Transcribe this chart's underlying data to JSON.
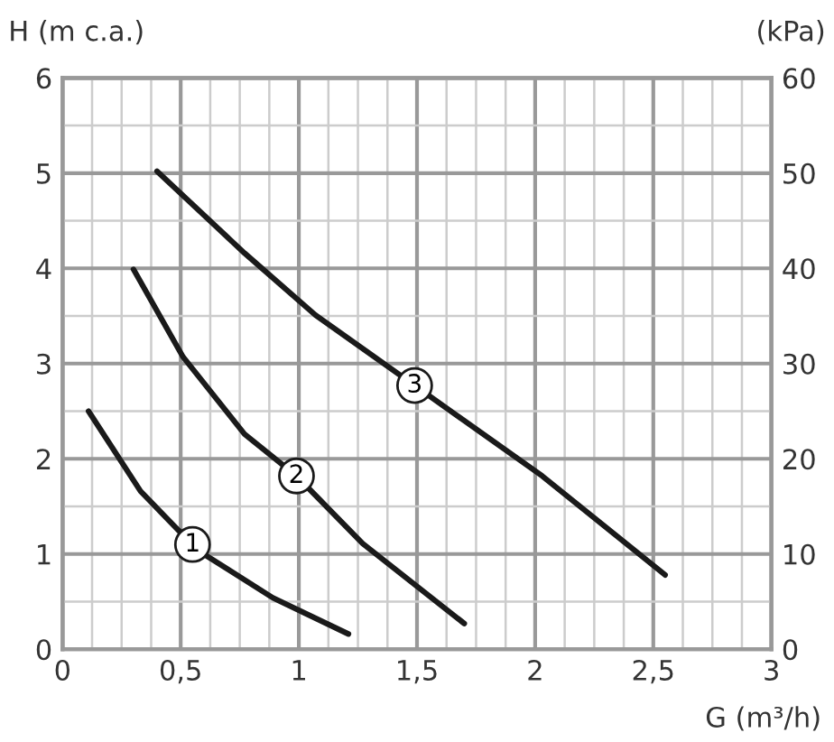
{
  "chart_data": {
    "type": "line",
    "xlabel": "G (m³/h)",
    "ylabel": "H (m c.a.)",
    "y2label": "(kPa)",
    "series": [
      {
        "color": "#1a1a1a",
        "x": [
          0.11,
          0.33,
          0.49,
          0.61,
          0.89,
          1.21
        ],
        "values": [
          2.5,
          1.66,
          1.25,
          0.98,
          0.54,
          0.16
        ]
      },
      {
        "color": "#1a1a1a",
        "x": [
          0.3,
          0.51,
          0.77,
          0.99,
          1.27,
          1.7
        ],
        "values": [
          3.99,
          3.07,
          2.26,
          1.82,
          1.11,
          0.27
        ]
      },
      {
        "color": "#1a1a1a",
        "x": [
          0.4,
          0.77,
          1.07,
          1.49,
          2.03,
          2.55
        ],
        "values": [
          5.02,
          4.16,
          3.51,
          2.77,
          1.82,
          0.78
        ]
      }
    ],
    "annotations": [
      {
        "text": "1",
        "x": 0.55,
        "y": 1.1
      },
      {
        "text": "2",
        "x": 0.99,
        "y": 1.82
      },
      {
        "text": "3",
        "x": 1.49,
        "y": 2.77
      }
    ],
    "xlim": [
      0,
      3
    ],
    "xticks": [
      0,
      {
        "value": 0.5,
        "label": "0,5"
      },
      1,
      {
        "value": 1.5,
        "label": "1,5"
      },
      2,
      {
        "value": 2.5,
        "label": "2,5"
      },
      3
    ],
    "ylim": [
      0,
      6
    ],
    "yticks": [
      0,
      1,
      2,
      3,
      4,
      5,
      6
    ],
    "y2lim": [
      0,
      60
    ],
    "y2ticks": [
      0,
      10,
      20,
      30,
      40,
      50,
      60
    ],
    "grid": true,
    "line_style": "solid",
    "marker": "none",
    "legend": false
  }
}
